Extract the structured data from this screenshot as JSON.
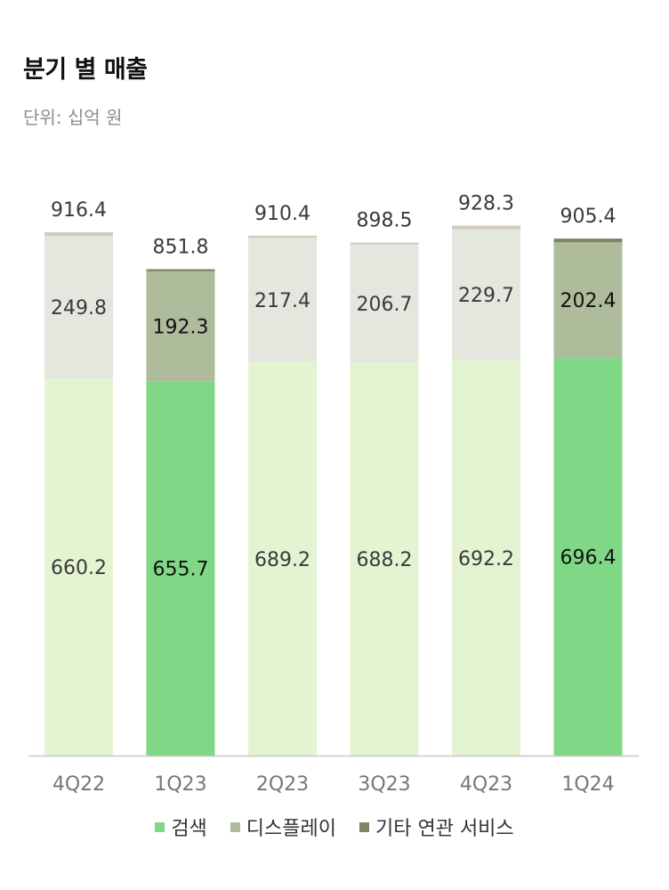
{
  "title": "분기 별 매출",
  "subtitle": "단위: 십억 원",
  "colors": {
    "search": "#80d886",
    "display": "#aebc9c",
    "other": "#7c8762",
    "search_faded": "#e4f4d2",
    "display_faded": "#e4e7dd",
    "other_faded": "#d3cbbf",
    "axis": "#c8c8c8",
    "tick_text": "#777777"
  },
  "legend": [
    {
      "label": "검색",
      "color": "#80d886"
    },
    {
      "label": "디스플레이",
      "color": "#aebc9c"
    },
    {
      "label": "기타 연관 서비스",
      "color": "#7c8762"
    }
  ],
  "chart_data": {
    "type": "bar",
    "stacked": true,
    "categories": [
      "4Q22",
      "1Q23",
      "2Q23",
      "3Q23",
      "4Q23",
      "1Q24"
    ],
    "highlighted": [
      "1Q23",
      "1Q24"
    ],
    "series": [
      {
        "name": "검색",
        "values": [
          660.2,
          655.7,
          689.2,
          688.2,
          692.2,
          696.4
        ]
      },
      {
        "name": "디스플레이",
        "values": [
          249.8,
          192.3,
          217.4,
          206.7,
          229.7,
          202.4
        ]
      },
      {
        "name": "기타 연관 서비스",
        "values": [
          6.4,
          3.8,
          3.8,
          3.6,
          6.4,
          6.6
        ]
      }
    ],
    "segment_labels": [
      [
        "660.2",
        "655.7",
        "689.2",
        "688.2",
        "692.2",
        "696.4"
      ],
      [
        "249.8",
        "192.3",
        "217.4",
        "206.7",
        "229.7",
        "202.4"
      ]
    ],
    "totals": [
      "916.4",
      "851.8",
      "910.4",
      "898.5",
      "928.3",
      "905.4"
    ],
    "ylim": [
      0,
      916.4
    ],
    "grid": false,
    "legend_position": "bottom"
  }
}
